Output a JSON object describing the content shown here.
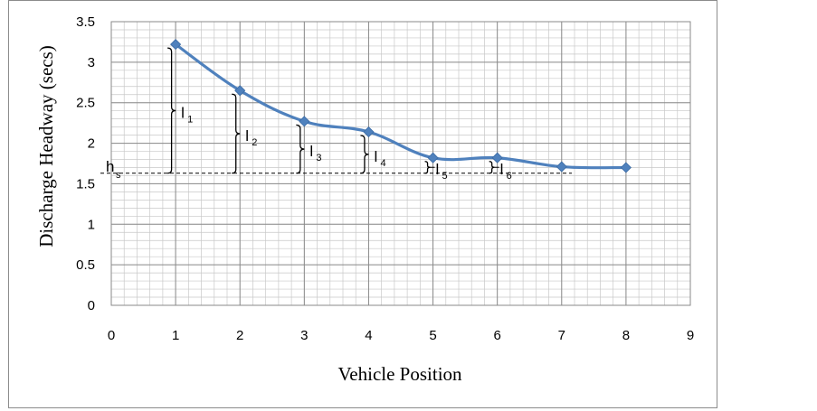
{
  "chart_data": {
    "type": "line",
    "xlabel": "Vehicle Position",
    "ylabel": "Discharge Headway (secs)",
    "xlim": [
      0,
      9
    ],
    "ylim": [
      0,
      3.5
    ],
    "x_ticks": [
      "0",
      "1",
      "2",
      "3",
      "4",
      "5",
      "6",
      "7",
      "8",
      "9"
    ],
    "y_ticks": [
      "0",
      "0.5",
      "1",
      "1.5",
      "2",
      "2.5",
      "3",
      "3.5"
    ],
    "grid": "on (major and minor)",
    "series": [
      {
        "x": [
          1,
          2,
          3,
          4,
          5,
          6,
          7,
          8
        ],
        "y": [
          3.22,
          2.65,
          2.27,
          2.14,
          1.82,
          1.82,
          1.71,
          1.7
        ],
        "color": "#4f81bd",
        "marker": "diamond"
      }
    ],
    "reference_line": {
      "label": "h",
      "subscript": "s",
      "y": 1.63,
      "style": "dashed"
    },
    "annotations": [
      {
        "label": "l",
        "subscript": "1",
        "x": 1
      },
      {
        "label": "l",
        "subscript": "2",
        "x": 2
      },
      {
        "label": "l",
        "subscript": "3",
        "x": 3
      },
      {
        "label": "l",
        "subscript": "4",
        "x": 4
      },
      {
        "label": "l",
        "subscript": "5",
        "x": 5
      },
      {
        "label": "l",
        "subscript": "6",
        "x": 6
      }
    ]
  }
}
